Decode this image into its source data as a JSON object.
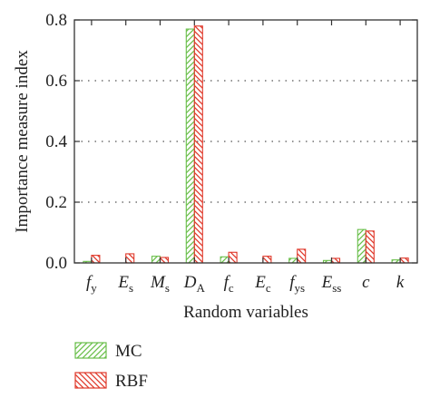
{
  "chart_data": {
    "type": "bar",
    "categories": [
      {
        "main": "f",
        "sub": "y"
      },
      {
        "main": "E",
        "sub": "s"
      },
      {
        "main": "M",
        "sub": "s"
      },
      {
        "main": "D",
        "sub": "A"
      },
      {
        "main": "f",
        "sub": "c"
      },
      {
        "main": "E",
        "sub": "c"
      },
      {
        "main": "f",
        "sub": "ys"
      },
      {
        "main": "E",
        "sub": "ss"
      },
      {
        "main": "c",
        "sub": ""
      },
      {
        "main": "k",
        "sub": ""
      }
    ],
    "series": [
      {
        "name": "MC",
        "color": "#6abf4b",
        "hatch": "forward",
        "values": [
          0.005,
          0.0,
          0.022,
          0.77,
          0.02,
          0.0,
          0.015,
          0.008,
          0.11,
          0.01
        ]
      },
      {
        "name": "RBF",
        "color": "#e0392b",
        "hatch": "backward",
        "values": [
          0.025,
          0.03,
          0.018,
          0.78,
          0.035,
          0.022,
          0.045,
          0.015,
          0.105,
          0.016
        ]
      }
    ],
    "xlabel": "Random variables",
    "ylabel": "Importance measure index",
    "ylim": [
      0,
      0.8
    ],
    "yticks": [
      0.0,
      0.2,
      0.4,
      0.6,
      0.8
    ],
    "ytick_labels": [
      "0.0",
      "0.2",
      "0.4",
      "0.6",
      "0.8"
    ],
    "grid": "horizontal dotted",
    "legend_position": "bottom-left below axes"
  }
}
